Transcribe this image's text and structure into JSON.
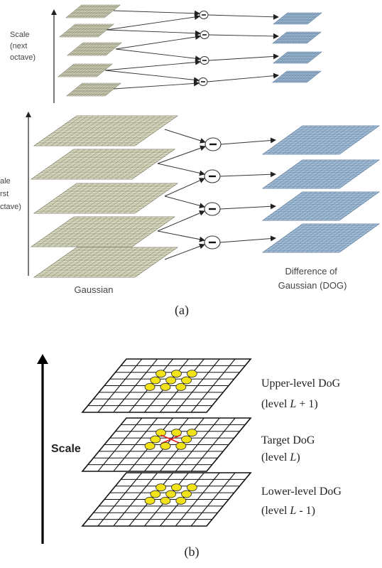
{
  "panel_a": {
    "next_octave_label": [
      "Scale",
      "(next",
      "octave)"
    ],
    "first_octave_label": [
      "ale",
      "rst",
      "ctave)"
    ],
    "gaussian_label": "Gaussian",
    "dog_label": [
      "Difference of",
      "Gaussian (DOG)"
    ],
    "caption": "(a)",
    "operator_symbol": "−",
    "colors": {
      "gaussian_fill": "#e2e2c8",
      "gaussian_line": "#7a7a66",
      "dog_fill": "#a9c4da",
      "dog_line": "#58779a"
    }
  },
  "panel_b": {
    "scale_label": "Scale",
    "levels": [
      {
        "title": "Upper-level DoG",
        "sub_prefix": "(level ",
        "sub_var": "L",
        "sub_suffix": " + 1)"
      },
      {
        "title": "Target DoG",
        "sub_prefix": "(level ",
        "sub_var": "L",
        "sub_suffix": ")"
      },
      {
        "title": "Lower-level DoG",
        "sub_prefix": "(level ",
        "sub_var": "L",
        "sub_suffix": " - 1)"
      }
    ],
    "caption": "(b)",
    "colors": {
      "keypoint": "#f2e21a",
      "center_mark": "#e02020"
    }
  }
}
